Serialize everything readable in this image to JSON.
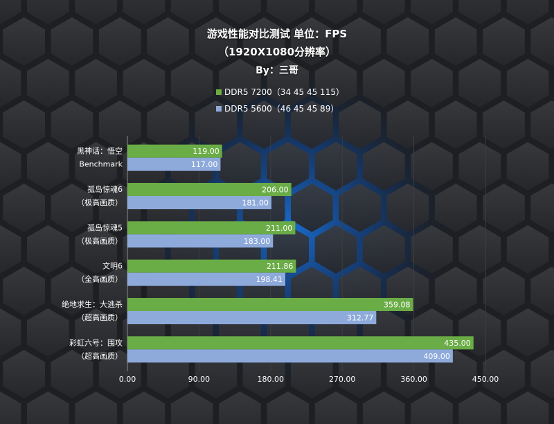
{
  "title": {
    "line1": "游戏性能对比测试 单位：FPS",
    "line2": "（1920X1080分辨率）",
    "line3": "By：三哥"
  },
  "legend": [
    {
      "label": "DDR5 7200（34 45 45 115）",
      "color": "#6aac46"
    },
    {
      "label": "DDR5 5600（46 45 45 89）",
      "color": "#8eaadb"
    }
  ],
  "colors": {
    "background": "#1e1f22",
    "hex_glow": "#1a6fd6",
    "series_1": "#6aac46",
    "series_2": "#8eaadb"
  },
  "chart_data": {
    "type": "bar",
    "orientation": "horizontal",
    "title": "游戏性能对比测试 单位：FPS",
    "subtitle": "（1920X1080分辨率）",
    "categories": [
      [
        "黑神话：悟空",
        "Benchmark"
      ],
      [
        "孤岛惊魂6",
        "（极高画质）"
      ],
      [
        "孤岛惊魂5",
        "（极高画质）"
      ],
      [
        "文明6",
        "（全高画质）"
      ],
      [
        "绝地求生：大逃杀",
        "（超高画质）"
      ],
      [
        "彩虹六号：围攻",
        "（超高画质）"
      ]
    ],
    "series": [
      {
        "name": "DDR5 7200（34 45 45 115）",
        "values": [
          119.0,
          206.0,
          211.0,
          211.86,
          359.08,
          435.0
        ],
        "color": "#6aac46"
      },
      {
        "name": "DDR5 5600（46 45 45 89）",
        "values": [
          117.0,
          181.0,
          183.0,
          198.41,
          312.77,
          409.0
        ],
        "color": "#8eaadb"
      }
    ],
    "xlim": [
      0,
      450
    ],
    "xticks": [
      "0.00",
      "90.00",
      "180.00",
      "270.00",
      "360.00",
      "450.00"
    ],
    "grid": "vertical",
    "legend_position": "top"
  }
}
